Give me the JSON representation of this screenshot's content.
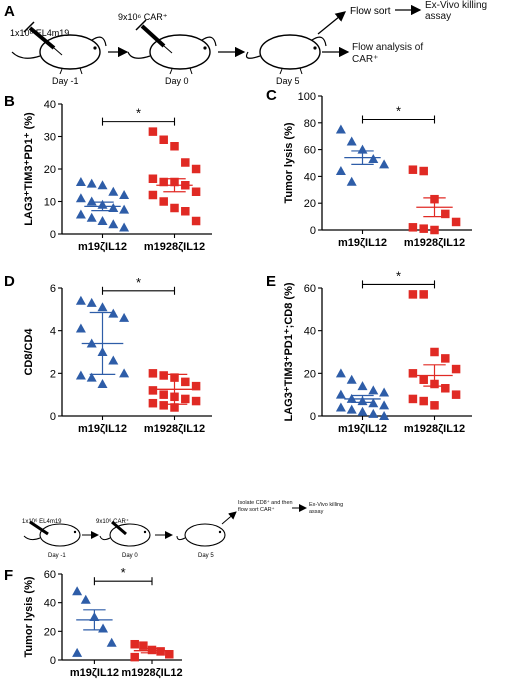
{
  "panels": {
    "A": {
      "letter": "A",
      "inj1_label": "1x10⁶ EL4m19",
      "inj1_day": "Day -1",
      "inj2_label": "9x10⁶ CAR⁺",
      "inj2_day": "Day 0",
      "day3": "Day 5",
      "out1": "Flow sort",
      "out2": "Ex-Vivo killing assay",
      "out3": "Flow analysis of CAR⁺"
    },
    "F_schematic": {
      "inj1_label": "1x10⁶ EL4m19",
      "inj1_day": "Day -1",
      "inj2_label": "9x10⁶ CAR⁺",
      "inj2_day": "Day 0",
      "day3": "Day 5",
      "out1": "Isolate CD8⁺ and then flow sort CAR⁺",
      "out2": "Ex-Vivo killing assay"
    }
  },
  "colors": {
    "blue": "#2e5da8",
    "red": "#e02a24",
    "axis": "#000000"
  },
  "chart_data": [
    {
      "id": "B",
      "letter": "B",
      "type": "scatter",
      "ylabel": "LAG3⁺TIM3⁺PD1⁺ (%)",
      "ylim": [
        0,
        40
      ],
      "yticks": [
        0,
        10,
        20,
        30,
        40
      ],
      "categories": [
        "m19ζIL12",
        "m1928ζIL12"
      ],
      "significance": "*",
      "error_style": "sem",
      "series": [
        {
          "category": "m19ζIL12",
          "marker": "triangle",
          "color": "#2e5da8",
          "mean": 8.5,
          "err": 1.3,
          "values": [
            16,
            15.5,
            15,
            13,
            12,
            11,
            10,
            9,
            8,
            7.5,
            6,
            5,
            4,
            3,
            2
          ]
        },
        {
          "category": "m1928ζIL12",
          "marker": "square",
          "color": "#e02a24",
          "mean": 15,
          "err": 2,
          "values": [
            31.5,
            29,
            27,
            22,
            20,
            17,
            16,
            16,
            15,
            13,
            12,
            10,
            8,
            7,
            4
          ]
        }
      ]
    },
    {
      "id": "C",
      "letter": "C",
      "type": "scatter",
      "ylabel": "Tumor lysis (%)",
      "ylim": [
        0,
        100
      ],
      "yticks": [
        0,
        20,
        40,
        60,
        80,
        100
      ],
      "categories": [
        "m19ζIL12",
        "m1928ζIL12"
      ],
      "significance": "*",
      "error_style": "sem",
      "series": [
        {
          "category": "m19ζIL12",
          "marker": "triangle",
          "color": "#2e5da8",
          "mean": 54,
          "err": 5,
          "values": [
            75,
            66,
            60,
            53,
            49,
            44,
            36
          ]
        },
        {
          "category": "m1928ζIL12",
          "marker": "square",
          "color": "#e02a24",
          "mean": 17,
          "err": 7,
          "values": [
            45,
            44,
            23,
            12,
            6,
            2,
            1,
            0
          ]
        }
      ]
    },
    {
      "id": "D",
      "letter": "D",
      "type": "scatter",
      "ylabel": "CD8/CD4",
      "ylim": [
        0,
        6
      ],
      "yticks": [
        0,
        2,
        4,
        6
      ],
      "categories": [
        "m19ζIL12",
        "m1928ζIL12"
      ],
      "significance": "*",
      "error_style": "sd",
      "series": [
        {
          "category": "m19ζIL12",
          "marker": "triangle",
          "color": "#2e5da8",
          "mean": 3.4,
          "err": 1.45,
          "values": [
            5.4,
            5.3,
            5.1,
            4.8,
            4.6,
            4.1,
            3.4,
            3.0,
            2.6,
            2.0,
            1.9,
            1.8,
            1.5
          ]
        },
        {
          "category": "m1928ζIL12",
          "marker": "square",
          "color": "#e02a24",
          "mean": 1.25,
          "err": 0.7,
          "values": [
            2.0,
            1.9,
            1.8,
            1.6,
            1.4,
            1.2,
            1.0,
            0.9,
            0.8,
            0.7,
            0.6,
            0.5,
            0.4
          ]
        }
      ]
    },
    {
      "id": "E",
      "letter": "E",
      "type": "scatter",
      "ylabel": "LAG3⁺TIM3⁺PD1⁺;CD8 (%)",
      "ylim": [
        0,
        60
      ],
      "yticks": [
        0,
        20,
        40,
        60
      ],
      "categories": [
        "m19ζIL12",
        "m1928ζIL12"
      ],
      "significance": "*",
      "error_style": "sem",
      "series": [
        {
          "category": "m19ζIL12",
          "marker": "triangle",
          "color": "#2e5da8",
          "mean": 8,
          "err": 1.6,
          "values": [
            20,
            17,
            14,
            12,
            11,
            10,
            8,
            7,
            6,
            5,
            4,
            3,
            2,
            1,
            0
          ]
        },
        {
          "category": "m1928ζIL12",
          "marker": "square",
          "color": "#e02a24",
          "mean": 19,
          "err": 5,
          "values": [
            57,
            57,
            30,
            27,
            22,
            20,
            17,
            15,
            13,
            10,
            8,
            7,
            5
          ]
        }
      ]
    },
    {
      "id": "F",
      "letter": "F",
      "type": "scatter",
      "ylabel": "Tumor lysis (%)",
      "ylim": [
        0,
        60
      ],
      "yticks": [
        0,
        20,
        40,
        60
      ],
      "categories": [
        "m19ζIL12",
        "m1928ζIL12"
      ],
      "significance": "*",
      "error_style": "sem",
      "series": [
        {
          "category": "m19ζIL12",
          "marker": "triangle",
          "color": "#2e5da8",
          "mean": 28,
          "err": 7,
          "values": [
            48,
            42,
            30,
            22,
            12,
            5
          ]
        },
        {
          "category": "m1928ζIL12",
          "marker": "square",
          "color": "#e02a24",
          "mean": 6.5,
          "err": 1.5,
          "values": [
            11,
            10,
            7,
            6,
            4,
            2
          ]
        }
      ]
    }
  ]
}
